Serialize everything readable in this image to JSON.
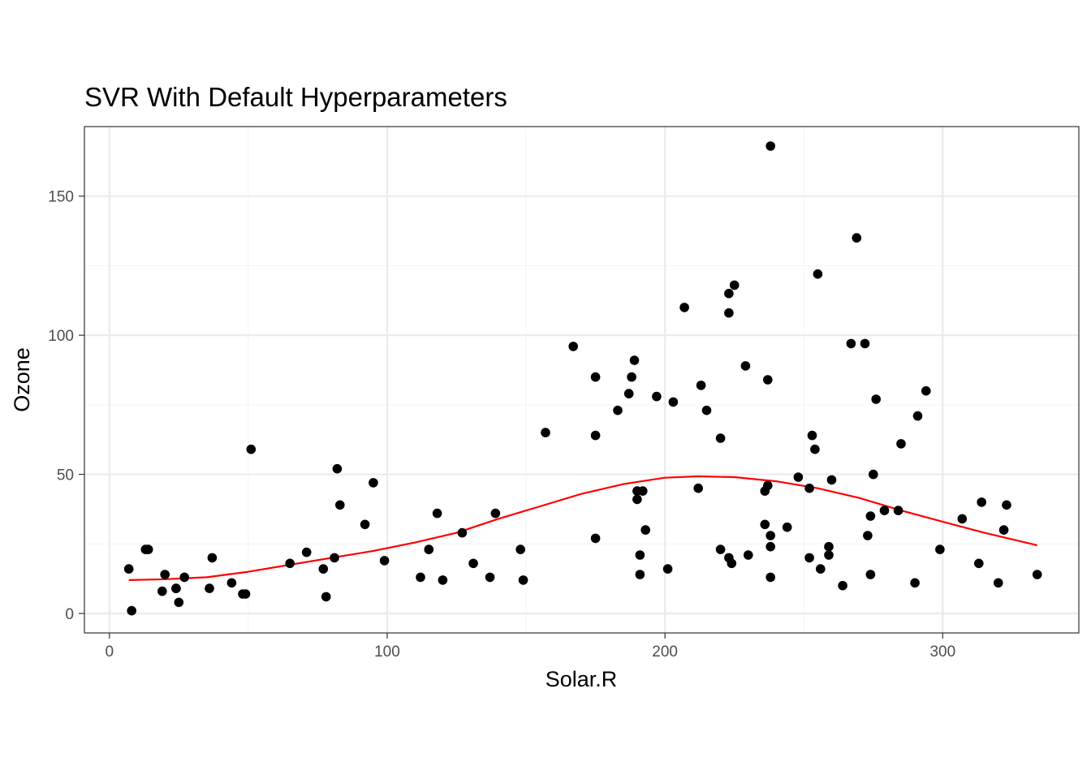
{
  "chart_data": {
    "type": "scatter",
    "title": "SVR With Default Hyperparameters",
    "xlabel": "Solar.R",
    "ylabel": "Ozone",
    "xlim": [
      -9,
      349
    ],
    "ylim": [
      -7,
      175
    ],
    "xticks": [
      0,
      100,
      200,
      300
    ],
    "yticks": [
      0,
      50,
      100,
      150
    ],
    "grid": true,
    "legend": "none",
    "colors": {
      "points": "#000000",
      "line": "#ff0000",
      "grid_major": "#ebebeb",
      "grid_minor": "#f5f5f5",
      "panel_border": "#333333"
    },
    "points": [
      [
        7,
        16
      ],
      [
        8,
        1
      ],
      [
        13,
        23
      ],
      [
        14,
        23
      ],
      [
        19,
        8
      ],
      [
        20,
        14
      ],
      [
        24,
        9
      ],
      [
        24,
        9
      ],
      [
        25,
        4
      ],
      [
        27,
        13
      ],
      [
        36,
        9
      ],
      [
        37,
        20
      ],
      [
        44,
        11
      ],
      [
        48,
        7
      ],
      [
        49,
        7
      ],
      [
        51,
        59
      ],
      [
        65,
        18
      ],
      [
        71,
        22
      ],
      [
        77,
        16
      ],
      [
        78,
        6
      ],
      [
        81,
        20
      ],
      [
        82,
        52
      ],
      [
        83,
        39
      ],
      [
        92,
        32
      ],
      [
        95,
        47
      ],
      [
        99,
        19
      ],
      [
        112,
        13
      ],
      [
        115,
        23
      ],
      [
        118,
        36
      ],
      [
        120,
        12
      ],
      [
        127,
        29
      ],
      [
        131,
        18
      ],
      [
        137,
        13
      ],
      [
        139,
        36
      ],
      [
        148,
        23
      ],
      [
        149,
        12
      ],
      [
        157,
        65
      ],
      [
        167,
        96
      ],
      [
        175,
        64
      ],
      [
        175,
        85
      ],
      [
        175,
        27
      ],
      [
        183,
        73
      ],
      [
        187,
        79
      ],
      [
        188,
        85
      ],
      [
        189,
        91
      ],
      [
        190,
        44
      ],
      [
        190,
        41
      ],
      [
        191,
        14
      ],
      [
        191,
        21
      ],
      [
        192,
        44
      ],
      [
        193,
        30
      ],
      [
        197,
        78
      ],
      [
        201,
        16
      ],
      [
        203,
        76
      ],
      [
        207,
        110
      ],
      [
        212,
        45
      ],
      [
        213,
        82
      ],
      [
        215,
        73
      ],
      [
        220,
        23
      ],
      [
        220,
        63
      ],
      [
        223,
        115
      ],
      [
        223,
        108
      ],
      [
        223,
        20
      ],
      [
        224,
        18
      ],
      [
        225,
        118
      ],
      [
        229,
        89
      ],
      [
        230,
        21
      ],
      [
        236,
        44
      ],
      [
        236,
        32
      ],
      [
        237,
        84
      ],
      [
        237,
        46
      ],
      [
        238,
        168
      ],
      [
        238,
        28
      ],
      [
        238,
        24
      ],
      [
        238,
        13
      ],
      [
        244,
        31
      ],
      [
        248,
        49
      ],
      [
        252,
        45
      ],
      [
        252,
        20
      ],
      [
        253,
        64
      ],
      [
        254,
        59
      ],
      [
        255,
        122
      ],
      [
        256,
        16
      ],
      [
        259,
        24
      ],
      [
        259,
        21
      ],
      [
        260,
        48
      ],
      [
        264,
        10
      ],
      [
        267,
        97
      ],
      [
        269,
        135
      ],
      [
        272,
        97
      ],
      [
        273,
        28
      ],
      [
        274,
        14
      ],
      [
        274,
        35
      ],
      [
        275,
        50
      ],
      [
        276,
        77
      ],
      [
        279,
        37
      ],
      [
        284,
        37
      ],
      [
        285,
        61
      ],
      [
        290,
        11
      ],
      [
        291,
        71
      ],
      [
        294,
        80
      ],
      [
        299,
        23
      ],
      [
        307,
        34
      ],
      [
        313,
        18
      ],
      [
        314,
        40
      ],
      [
        320,
        11
      ],
      [
        322,
        30
      ],
      [
        323,
        39
      ],
      [
        334,
        14
      ]
    ],
    "fit_line": {
      "x": [
        7,
        20,
        35,
        50,
        65,
        80,
        95,
        110,
        125,
        140,
        155,
        170,
        185,
        200,
        212,
        225,
        240,
        255,
        270,
        285,
        300,
        315,
        334
      ],
      "y": [
        12,
        12.3,
        13,
        15,
        17.5,
        20,
        22.5,
        25.5,
        29,
        34,
        38.5,
        43,
        46.5,
        48.8,
        49.3,
        49,
        47.5,
        45,
        41.5,
        37,
        33,
        29,
        24.5
      ]
    }
  }
}
